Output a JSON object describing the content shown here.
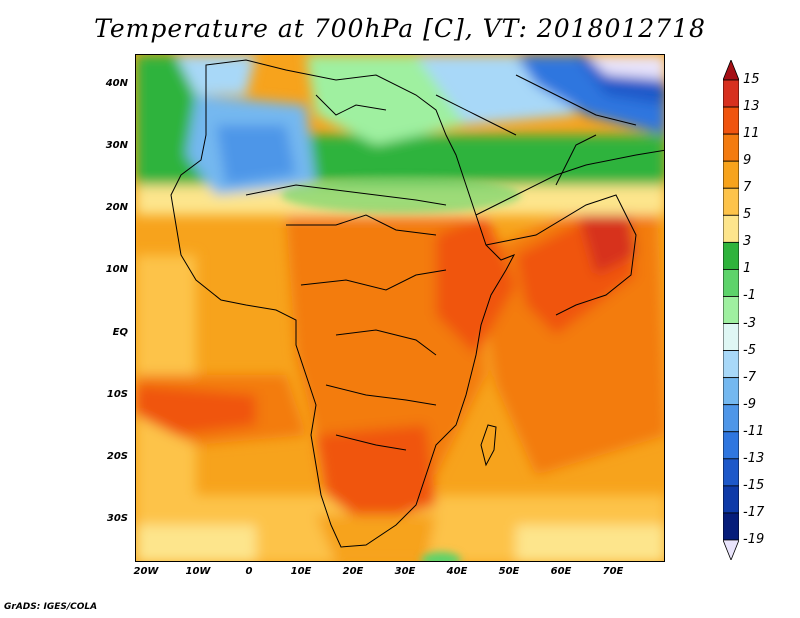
{
  "title": "Temperature at 700hPa [C], VT: 2018012718",
  "map": {
    "lat_labels": [
      "40N",
      "30N",
      "20N",
      "10N",
      "EQ",
      "10S",
      "20S",
      "30S"
    ],
    "lon_labels": [
      "20W",
      "10W",
      "0",
      "10E",
      "20E",
      "30E",
      "40E",
      "50E",
      "60E",
      "70E"
    ]
  },
  "colorbar": {
    "labels": [
      "15",
      "13",
      "11",
      "9",
      "7",
      "5",
      "3",
      "1",
      "-1",
      "-3",
      "-5",
      "-7",
      "-9",
      "-11",
      "-13",
      "-15",
      "-17",
      "-19"
    ],
    "colors": [
      "#a50f15",
      "#d7301f",
      "#f0540e",
      "#f37b0f",
      "#f7a31c",
      "#fdc34a",
      "#fde58c",
      "#2fb33c",
      "#5dd36a",
      "#9ff0a0",
      "#dff7f4",
      "#a8d8f8",
      "#74b8f0",
      "#4e96e8",
      "#2f76df",
      "#1d58c9",
      "#0e3aa8",
      "#061d7a",
      "#e9e4fb"
    ]
  },
  "credit": "GrADS: IGES/COLA"
}
